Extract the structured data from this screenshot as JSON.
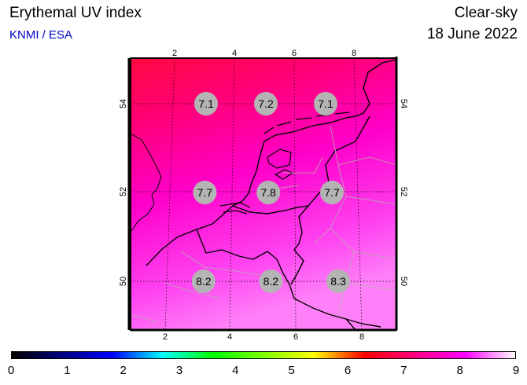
{
  "header": {
    "title": "Erythemal UV index",
    "subtitle": "KNMI / ESA",
    "condition": "Clear-sky",
    "date": "18 June 2022"
  },
  "map": {
    "lon_ticks": [
      2,
      4,
      6,
      8
    ],
    "lat_ticks": [
      50,
      52,
      54
    ],
    "values": [
      {
        "lat": 54,
        "lon": 3,
        "value": "7.1"
      },
      {
        "lat": 54,
        "lon": 5,
        "value": "7.2"
      },
      {
        "lat": 54,
        "lon": 7,
        "value": "7.1"
      },
      {
        "lat": 52,
        "lon": 3,
        "value": "7.7"
      },
      {
        "lat": 52,
        "lon": 5,
        "value": "7.8"
      },
      {
        "lat": 52,
        "lon": 7,
        "value": "7.7"
      },
      {
        "lat": 50,
        "lon": 3,
        "value": "8.2"
      },
      {
        "lat": 50,
        "lon": 5,
        "value": "8.2"
      },
      {
        "lat": 50,
        "lon": 7,
        "value": "8.3"
      }
    ]
  },
  "colorbar": {
    "labels": [
      "0",
      "1",
      "2",
      "3",
      "4",
      "5",
      "6",
      "7",
      "8",
      "9"
    ],
    "colors": [
      "#000000",
      "#00007f",
      "#0000ff",
      "#00ffff",
      "#00ff00",
      "#80ff00",
      "#ffff00",
      "#ff0000",
      "#ff0080",
      "#ff00ff",
      "#ffffff"
    ]
  }
}
